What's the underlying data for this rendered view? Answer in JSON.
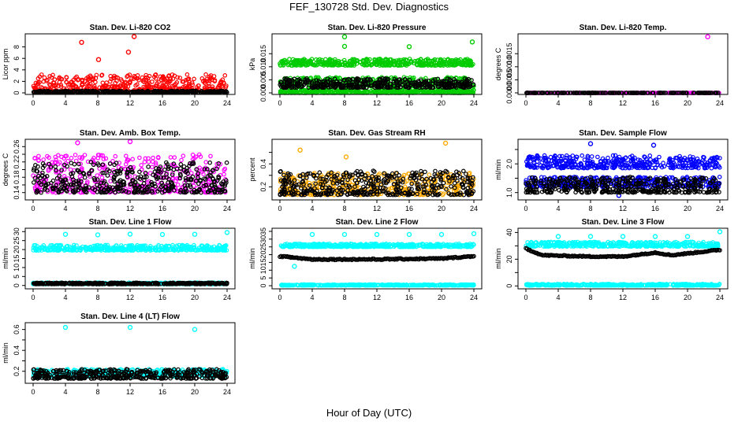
{
  "title": "FEF_130728  Std. Dev. Diagnostics",
  "xlabel": "Hour of Day (UTC)",
  "chart_data": [
    {
      "type": "scatter",
      "title": "Stan. Dev. Li-820 CO2",
      "ylabel": "Licor ppm",
      "xlim": [
        0,
        24
      ],
      "xticks": [
        0,
        4,
        8,
        12,
        16,
        20,
        24
      ],
      "ylim": [
        0,
        10
      ],
      "yticks": [
        0,
        2,
        4,
        6,
        8
      ],
      "ytick_labels": [
        "0",
        "2",
        "4",
        "6",
        "8"
      ],
      "series": [
        {
          "color": "#ff0000",
          "band": [
            0.3,
            3.2
          ],
          "outliers": [
            [
              6,
              8.8
            ],
            [
              12.5,
              9.8
            ],
            [
              11.8,
              7.1
            ],
            [
              8.1,
              5.8
            ]
          ]
        },
        {
          "color": "#000000",
          "band": [
            0.05,
            0.35
          ]
        }
      ]
    },
    {
      "type": "scatter",
      "title": "Stan. Dev. Li-820 Pressure",
      "ylabel": "kPa",
      "xlim": [
        0,
        24
      ],
      "xticks": [
        0,
        4,
        8,
        12,
        16,
        20,
        24
      ],
      "ylim": [
        0,
        0.022
      ],
      "yticks": [
        0,
        0.005,
        0.01,
        0.015
      ],
      "ytick_labels": [
        "0.000",
        "0.005",
        "0.010",
        "0.015"
      ],
      "series": [
        {
          "color": "#00cc00",
          "band": [
            0.0105,
            0.013
          ],
          "outliers": [
            [
              8,
              0.0215
            ],
            [
              16,
              0.0177
            ],
            [
              8,
              0.0178
            ],
            [
              23.8,
              0.0195
            ]
          ]
        },
        {
          "color": "#00cc00",
          "band": [
            0.0025,
            0.006
          ]
        },
        {
          "color": "#00cc00",
          "band": [
            0.0,
            0.0012
          ]
        },
        {
          "color": "#000000",
          "band": [
            0.002,
            0.0055
          ]
        }
      ]
    },
    {
      "type": "scatter",
      "title": "Stan. Dev. Li-820 Temp.",
      "ylabel": "degrees C",
      "xlim": [
        0,
        24
      ],
      "xticks": [
        0,
        4,
        8,
        12,
        16,
        20,
        24
      ],
      "ylim": [
        0,
        0.0022
      ],
      "yticks": [
        0,
        0.0005,
        0.001,
        0.0015
      ],
      "ytick_labels": [
        "0.0000",
        "0.0005",
        "0.0010",
        "0.0015"
      ],
      "series": [
        {
          "color": "#ff00ff",
          "band": [
            0,
            0
          ],
          "outliers": [
            [
              22.5,
              0.00215
            ]
          ]
        },
        {
          "color": "#000000",
          "band": [
            0,
            0
          ]
        }
      ]
    },
    {
      "type": "scatter",
      "title": "Stan. Dev. Amb. Box Temp.",
      "ylabel": "degrees C",
      "xlim": [
        0,
        24
      ],
      "xticks": [
        0,
        4,
        8,
        12,
        16,
        20,
        24
      ],
      "ylim": [
        0.125,
        0.275
      ],
      "yticks": [
        0.14,
        0.16,
        0.18,
        0.2,
        0.22,
        0.24,
        0.26
      ],
      "ytick_labels": [
        "0.14",
        "",
        "0.18",
        "",
        "0.22",
        "",
        "0.26"
      ],
      "series": [
        {
          "color": "#ff00ff",
          "band": [
            0.14,
            0.24
          ],
          "outliers": [
            [
              5.5,
              0.27
            ],
            [
              12,
              0.273
            ]
          ]
        },
        {
          "color": "#000000",
          "band": [
            0.14,
            0.22
          ]
        }
      ]
    },
    {
      "type": "scatter",
      "title": "Stan. Dev. Gas Stream RH",
      "ylabel": "percent",
      "xlim": [
        0,
        24
      ],
      "xticks": [
        0,
        4,
        8,
        12,
        16,
        20,
        24
      ],
      "ylim": [
        0.1,
        0.6
      ],
      "yticks": [
        0.2,
        0.3,
        0.4,
        0.5
      ],
      "ytick_labels": [
        "0.2",
        "",
        "0.4",
        ""
      ],
      "series": [
        {
          "color": "#ffaa00",
          "band": [
            0.13,
            0.32
          ],
          "outliers": [
            [
              2.5,
              0.52
            ],
            [
              20.5,
              0.58
            ],
            [
              8.2,
              0.46
            ]
          ]
        },
        {
          "color": "#000000",
          "band": [
            0.13,
            0.34
          ]
        }
      ]
    },
    {
      "type": "scatter",
      "title": "Stan. Dev. Sample Flow",
      "ylabel": "ml/min",
      "xlim": [
        0,
        24
      ],
      "xticks": [
        0,
        4,
        8,
        12,
        16,
        20,
        24
      ],
      "ylim": [
        0.8,
        2.8
      ],
      "yticks": [
        1,
        1.5,
        2,
        2.5
      ],
      "ytick_labels": [
        "1.0",
        "",
        "2.0",
        ""
      ],
      "series": [
        {
          "color": "#0000ff",
          "band": [
            1.85,
            2.3
          ],
          "outliers": [
            [
              8,
              2.7
            ],
            [
              15.8,
              2.65
            ],
            [
              11.5,
              0.9
            ]
          ]
        },
        {
          "color": "#0000ff",
          "band": [
            1.2,
            1.55
          ]
        },
        {
          "color": "#000000",
          "band": [
            1.0,
            1.55
          ]
        }
      ]
    },
    {
      "type": "scatter",
      "title": "Stan. Dev. Line 1 Flow",
      "ylabel": "ml/min",
      "xlim": [
        0,
        24
      ],
      "xticks": [
        0,
        4,
        8,
        12,
        16,
        20,
        24
      ],
      "ylim": [
        -1,
        31
      ],
      "yticks": [
        0,
        5,
        10,
        15,
        20,
        25,
        30
      ],
      "ytick_labels": [
        "0",
        "5",
        "10",
        "15",
        "20",
        "25",
        "30"
      ],
      "series": [
        {
          "color": "#00ffff",
          "band": [
            19.5,
            22.5
          ],
          "outliers": [
            [
              4,
              28.5
            ],
            [
              8,
              28.2
            ],
            [
              12,
              28.6
            ],
            [
              16,
              28.4
            ],
            [
              20,
              28.5
            ],
            [
              24,
              29.5
            ]
          ]
        },
        {
          "color": "#00ffff",
          "band": [
            0.8,
            1.6
          ]
        },
        {
          "color": "#000000",
          "band": [
            0.8,
            1.5
          ]
        }
      ]
    },
    {
      "type": "scatter",
      "title": "Stan. Dev. Line 2 Flow",
      "ylabel": "ml/min",
      "xlim": [
        0,
        24
      ],
      "xticks": [
        0,
        4,
        8,
        12,
        16,
        20,
        24
      ],
      "ylim": [
        -1,
        36
      ],
      "yticks": [
        0,
        5,
        10,
        15,
        20,
        25,
        30,
        35
      ],
      "ytick_labels": [
        "0",
        "5",
        "10",
        "15",
        "20",
        "25",
        "30",
        "35"
      ],
      "series": [
        {
          "color": "#00ffff",
          "band": [
            25,
            27
          ],
          "outliers": [
            [
              4,
              33
            ],
            [
              8,
              33
            ],
            [
              12,
              33
            ],
            [
              16,
              33
            ],
            [
              20,
              33
            ],
            [
              24,
              33.5
            ],
            [
              1.8,
              12.5
            ]
          ]
        },
        {
          "color": "#000000",
          "trend": [
            [
              0,
              19
            ],
            [
              4,
              17
            ],
            [
              12,
              17
            ],
            [
              20,
              17.5
            ],
            [
              24,
              19
            ]
          ]
        },
        {
          "color": "#00ffff",
          "band": [
            0.2,
            0.8
          ]
        }
      ]
    },
    {
      "type": "scatter",
      "title": "Stan. Dev. Line 3 Flow",
      "ylabel": "ml/min",
      "xlim": [
        0,
        24
      ],
      "xticks": [
        0,
        4,
        8,
        12,
        16,
        20,
        24
      ],
      "ylim": [
        -1,
        42
      ],
      "yticks": [
        0,
        10,
        20,
        30,
        40
      ],
      "ytick_labels": [
        "0",
        "",
        "20",
        "",
        "40"
      ],
      "series": [
        {
          "color": "#00ffff",
          "band": [
            29.5,
            33
          ],
          "outliers": [
            [
              4,
              37
            ],
            [
              8,
              37
            ],
            [
              12,
              37
            ],
            [
              16,
              37
            ],
            [
              20,
              37
            ],
            [
              24,
              40.5
            ]
          ]
        },
        {
          "color": "#000000",
          "trend": [
            [
              0,
              28
            ],
            [
              2,
              23
            ],
            [
              8,
              22
            ],
            [
              12,
              22
            ],
            [
              16,
              25
            ],
            [
              18,
              23
            ],
            [
              24,
              27
            ]
          ]
        },
        {
          "color": "#00ffff",
          "band": [
            0.3,
            1.5
          ]
        }
      ]
    },
    {
      "type": "scatter",
      "title": "Stan. Dev. Line 4 (LT) Flow",
      "ylabel": "ml/min",
      "xlim": [
        0,
        24
      ],
      "xticks": [
        0,
        4,
        8,
        12,
        16,
        20,
        24
      ],
      "ylim": [
        0.1,
        0.65
      ],
      "yticks": [
        0.2,
        0.3,
        0.4,
        0.5,
        0.6
      ],
      "ytick_labels": [
        "0.2",
        "",
        "0.4",
        "",
        "0.6"
      ],
      "series": [
        {
          "color": "#00ffff",
          "band": [
            0.15,
            0.22
          ],
          "outliers": [
            [
              4,
              0.62
            ],
            [
              12,
              0.62
            ],
            [
              20,
              0.6
            ]
          ]
        },
        {
          "color": "#000000",
          "band": [
            0.13,
            0.22
          ]
        }
      ]
    }
  ]
}
